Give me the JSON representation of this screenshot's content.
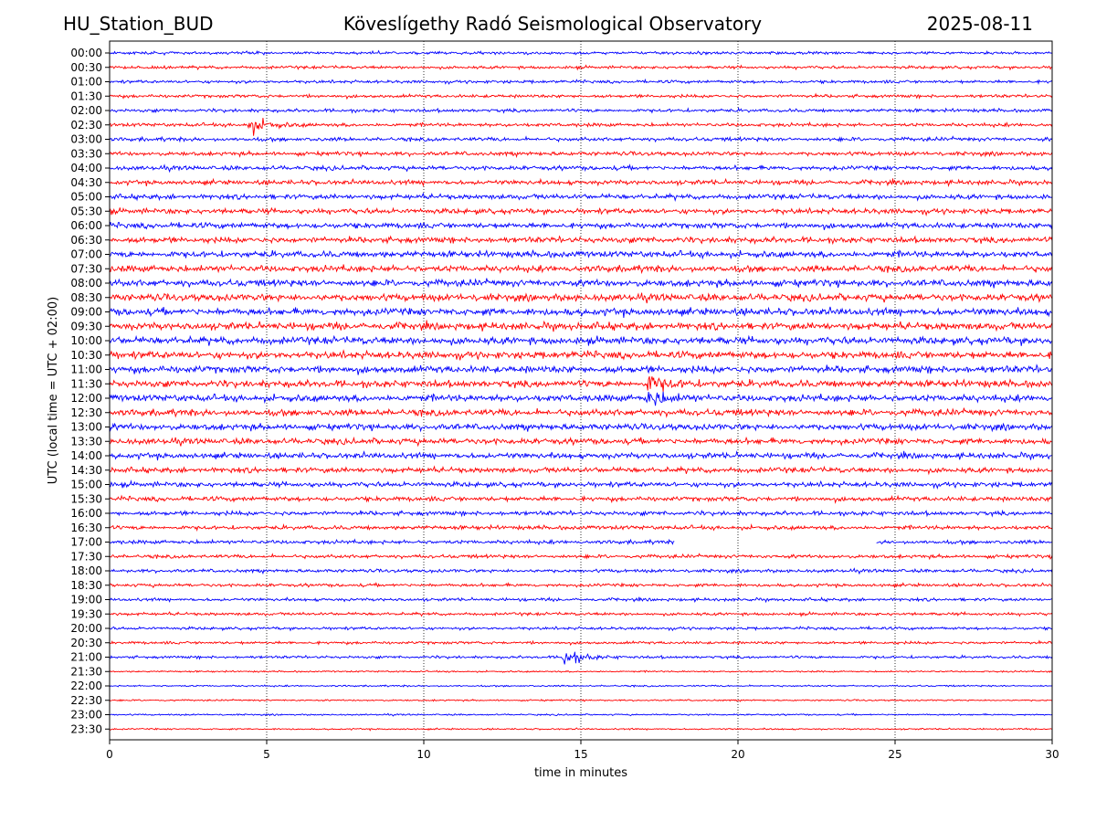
{
  "header": {
    "station": "HU_Station_BUD",
    "observatory": "Köveslígethy Radó Seismological Observatory",
    "date": "2025-08-11"
  },
  "chart_data": {
    "type": "line",
    "subtype": "helicorder",
    "xlabel": "time in minutes",
    "ylabel": "UTC (local time = UTC + 02:00)",
    "xlim": [
      0,
      30
    ],
    "xticks": [
      0,
      5,
      10,
      15,
      20,
      25,
      30
    ],
    "vertical_gridlines": true,
    "rows": [
      "00:00",
      "00:30",
      "01:00",
      "01:30",
      "02:00",
      "02:30",
      "03:00",
      "03:30",
      "04:00",
      "04:30",
      "05:00",
      "05:30",
      "06:00",
      "06:30",
      "07:00",
      "07:30",
      "08:00",
      "08:30",
      "09:00",
      "09:30",
      "10:00",
      "10:30",
      "11:00",
      "11:30",
      "12:00",
      "12:30",
      "13:00",
      "13:30",
      "14:00",
      "14:30",
      "15:00",
      "15:30",
      "16:00",
      "16:30",
      "17:00",
      "17:30",
      "18:00",
      "18:30",
      "19:00",
      "19:30",
      "20:00",
      "20:30",
      "21:00",
      "21:30",
      "22:00",
      "22:30",
      "23:00",
      "23:30"
    ],
    "trace_colors": [
      "#0000ff",
      "#ff0000"
    ],
    "data_gap": {
      "row": "17:00",
      "start_min": 18.0,
      "end_min": 24.4
    },
    "events": [
      {
        "row": "02:30",
        "minute": 4.5
      },
      {
        "row": "11:30",
        "minute": 17.2
      },
      {
        "row": "12:00",
        "minute": 17.2
      },
      {
        "row": "21:00",
        "minute": 14.5
      }
    ]
  }
}
